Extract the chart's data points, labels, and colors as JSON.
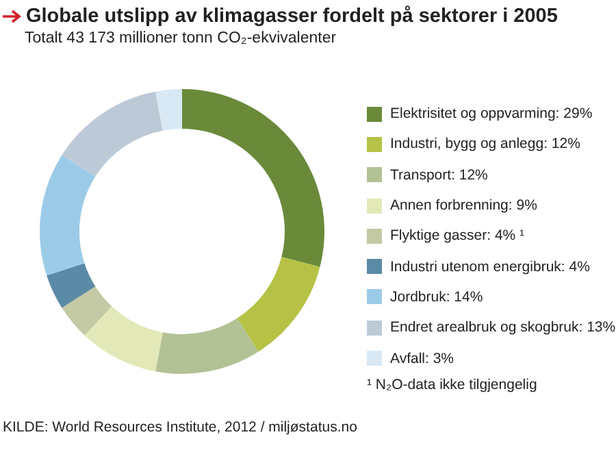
{
  "chart_data": {
    "type": "donut",
    "title": "Globale utslipp av klimagasser fordelt på sektorer i 2005",
    "subtitle": "Totalt 43 173 millioner tonn CO₂-ekvivalenter",
    "categories": [
      "Elektrisitet og oppvarming",
      "Industri, bygg og anlegg",
      "Transport",
      "Annen forbrenning",
      "Flyktige gasser",
      "Industri utenom energibruk",
      "Jordbruk",
      "Endret arealbruk og skogbruk",
      "Avfall"
    ],
    "values": [
      29,
      12,
      12,
      9,
      4,
      4,
      14,
      13,
      3
    ],
    "value_labels": [
      "29%",
      "12%",
      "12%",
      "9%",
      "4% ¹",
      "4%",
      "14%",
      "13%",
      "3%"
    ],
    "colors": [
      "#6a8a3a",
      "#b5c245",
      "#b3c295",
      "#e3e8b8",
      "#c4c9a5",
      "#5b8aa6",
      "#9ccbe8",
      "#bccad8",
      "#d8e8f5"
    ],
    "legend": "right",
    "annotations": [
      "¹ N₂O-data ikke tilgjengelig",
      "KILDE: World Resources Institute, 2012 / miljøstatus.no"
    ]
  }
}
